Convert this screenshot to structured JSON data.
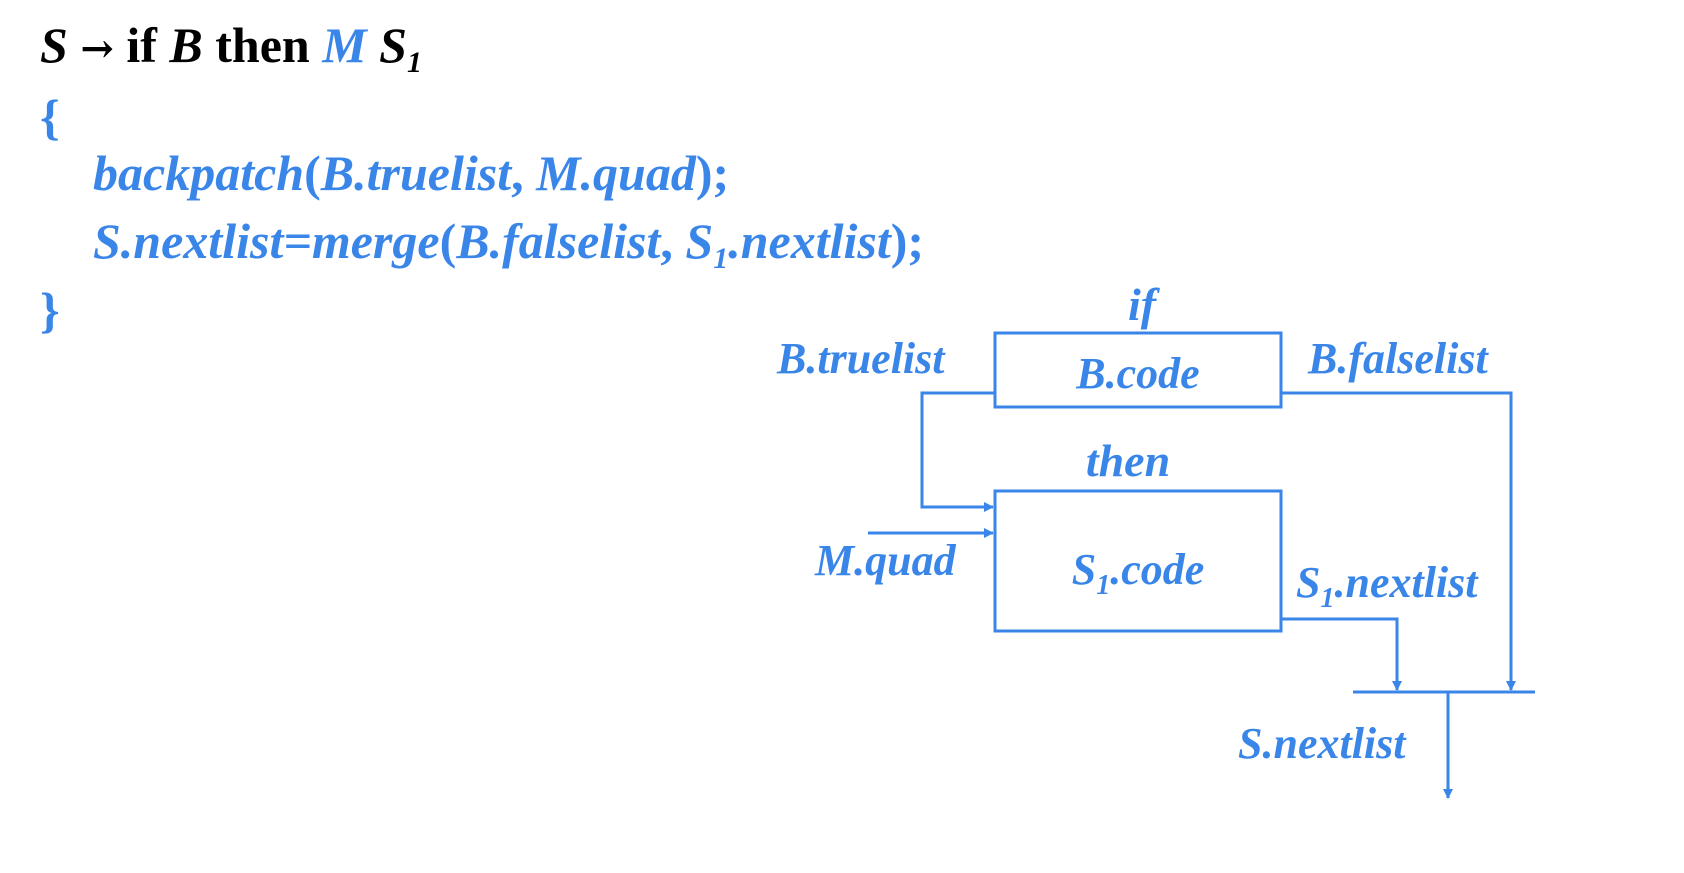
{
  "rule": {
    "lhs": "S",
    "arrow": "→",
    "kw_if": "if",
    "b": "B",
    "kw_then": "then",
    "m": "M",
    "s": "S",
    "s_sub": "1"
  },
  "code": {
    "open_brace": "{",
    "close_brace": "}",
    "line1": {
      "func": "backpatch",
      "paren_open": "(",
      "arg1": "B.truelist",
      "comma": ", ",
      "arg2": "M.quad",
      "paren_close": ");"
    },
    "line2": {
      "target": "S.nextlist=merge",
      "paren_open": "(",
      "arg1": "B.falselist",
      "comma": ", ",
      "arg2_base": "S",
      "arg2_sub": "1",
      "arg2_rest": ".nextlist",
      "paren_close": ");"
    }
  },
  "diagram": {
    "if_label": "if",
    "b_code": "B.code",
    "b_truelist": "B.truelist",
    "b_falselist": "B.falselist",
    "then_label": "then",
    "s1_code_base": "S",
    "s1_code_sub": "1",
    "s1_code_rest": ".code",
    "m_quad": "M.quad",
    "s1_nextlist_base": "S",
    "s1_nextlist_sub": "1",
    "s1_nextlist_rest": ".nextlist",
    "s_nextlist": "S.nextlist"
  },
  "colors": {
    "accent": "#3A86E8",
    "text": "#000000"
  }
}
